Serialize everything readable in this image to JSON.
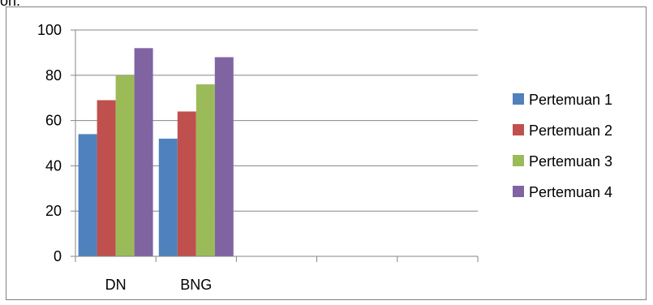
{
  "page_top_text": "on.",
  "chart_data": {
    "type": "bar",
    "categories": [
      "DN",
      "BNG",
      "",
      "",
      ""
    ],
    "series": [
      {
        "name": "Pertemuan 1",
        "values": [
          54,
          52,
          null,
          null,
          null
        ],
        "color": "#4f81bd"
      },
      {
        "name": "Pertemuan 2",
        "values": [
          69,
          64,
          null,
          null,
          null
        ],
        "color": "#c0504d"
      },
      {
        "name": "Pertemuan 3",
        "values": [
          80,
          76,
          null,
          null,
          null
        ],
        "color": "#9bbb59"
      },
      {
        "name": "Pertemuan 4",
        "values": [
          92,
          88,
          null,
          null,
          null
        ],
        "color": "#8064a2"
      }
    ],
    "ylim": [
      0,
      100
    ],
    "yticks": [
      0,
      20,
      40,
      60,
      80,
      100
    ],
    "title": "",
    "xlabel": "",
    "ylabel": "",
    "grid": true,
    "legend": "right"
  }
}
